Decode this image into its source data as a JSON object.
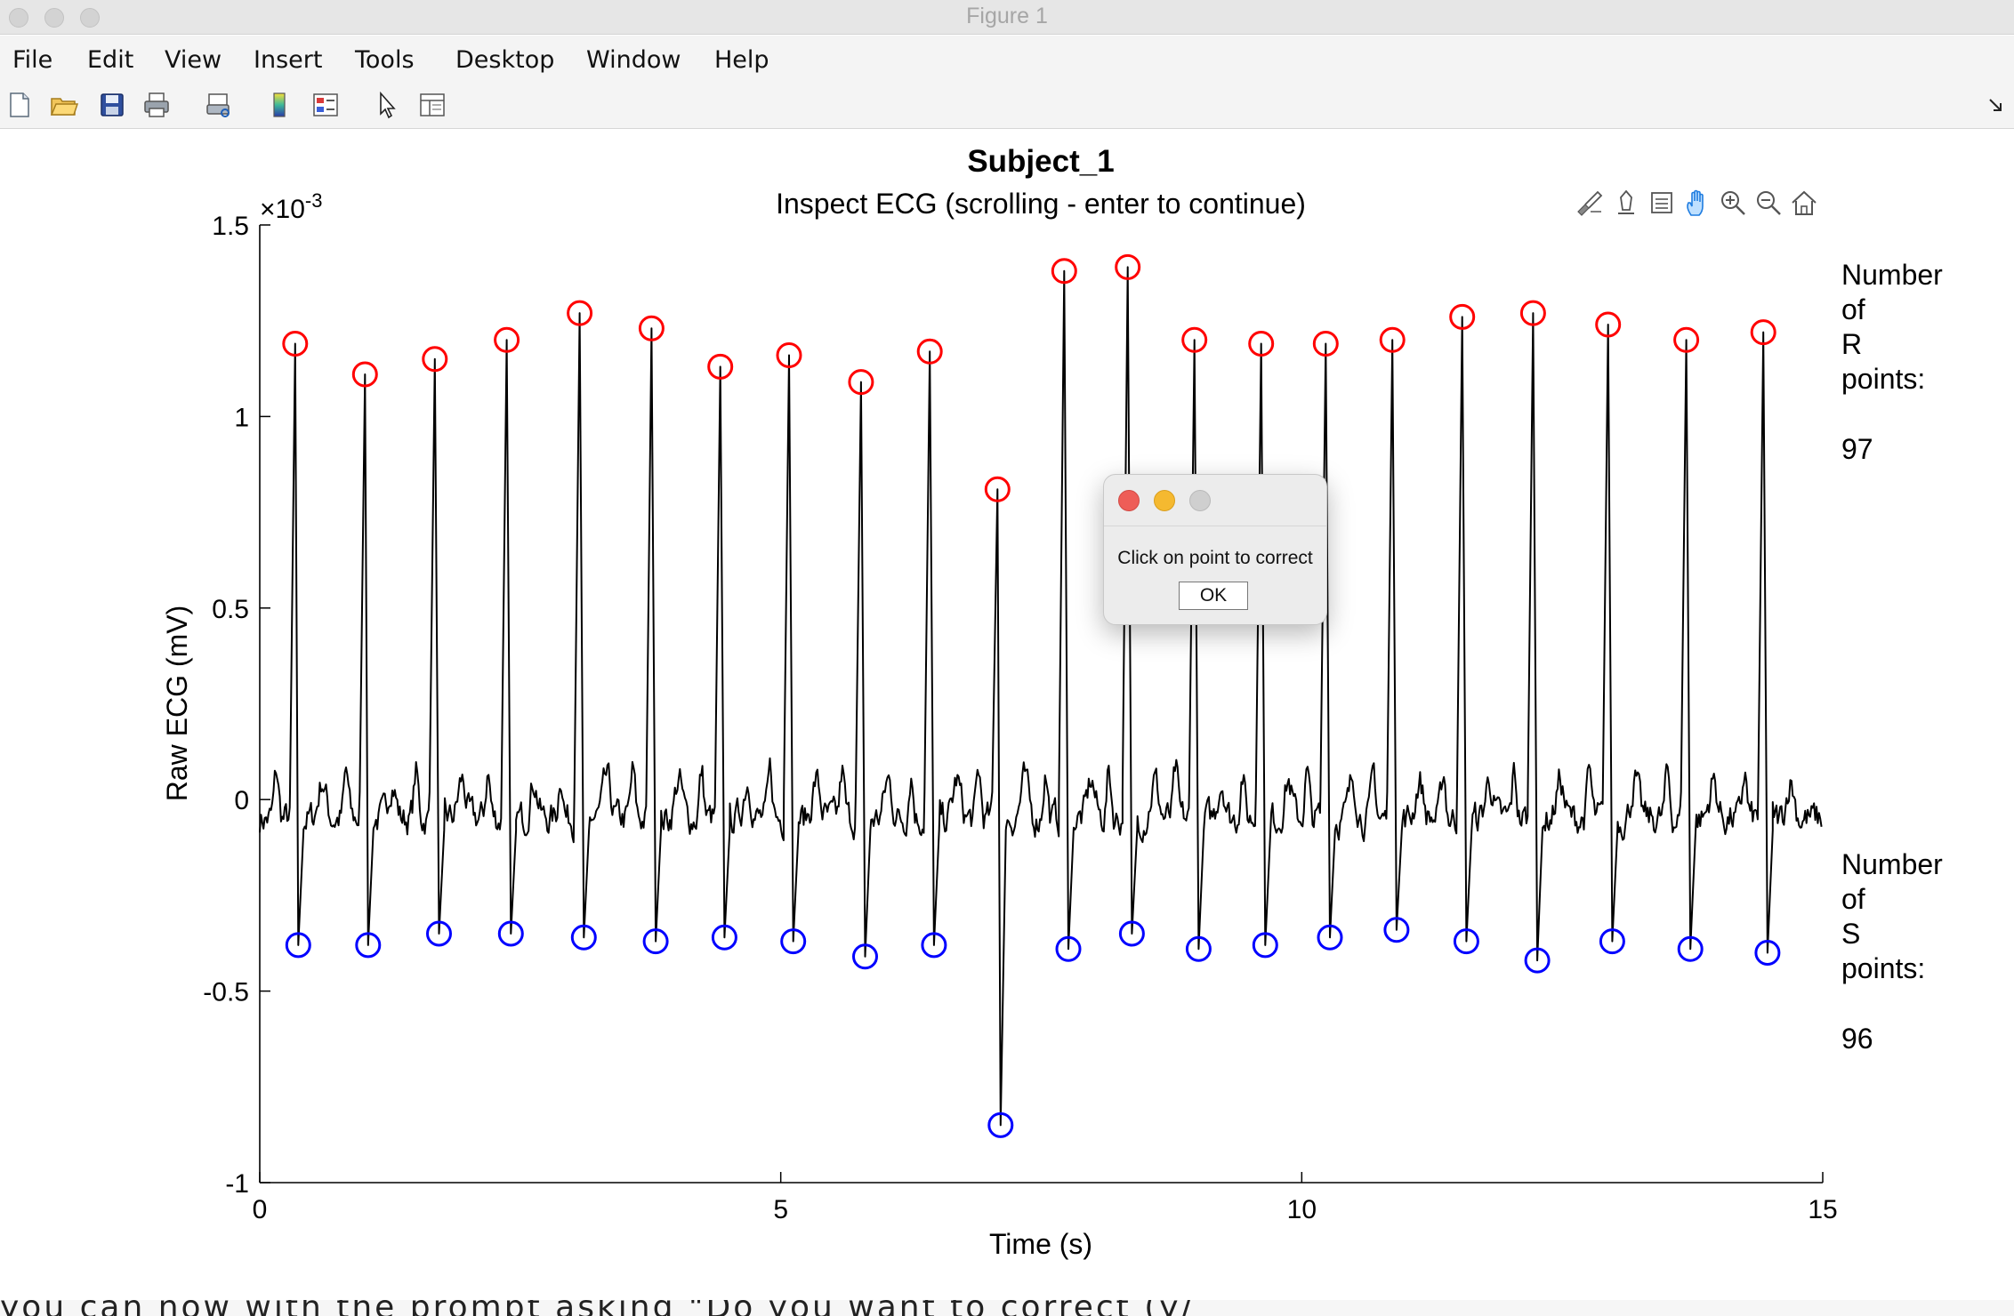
{
  "window": {
    "title": "Figure 1"
  },
  "menubar": {
    "items": [
      "File",
      "Edit",
      "View",
      "Insert",
      "Tools",
      "Desktop",
      "Window",
      "Help"
    ]
  },
  "toolbar": {
    "icons": [
      "new-figure-icon",
      "open-file-icon",
      "save-icon",
      "print-icon",
      "link-icon",
      "colorbar-icon",
      "legend-icon",
      "pointer-icon",
      "property-inspector-icon"
    ]
  },
  "axes_toolbar": {
    "icons": [
      "brush-icon",
      "data-tip-icon",
      "restore-view-icon",
      "pan-icon",
      "zoom-in-icon",
      "zoom-out-icon",
      "home-icon"
    ]
  },
  "figure": {
    "super_title": "Subject_1",
    "r_label": "Number\nof\nR\npoints:",
    "r_count": "97",
    "s_label": "Number\nof\nS\npoints:",
    "s_count": "96"
  },
  "dialog": {
    "message": "Click on point to correct",
    "ok_label": "OK"
  },
  "background_text": "you can now with the prompt asking \"Do you want to correct (y/",
  "chart_data": {
    "type": "line",
    "title": "Inspect ECG (scrolling - enter to continue)",
    "xlabel": "Time (s)",
    "ylabel": "Raw ECG (mV)",
    "xlim": [
      0,
      15
    ],
    "ylim": [
      -1,
      1.5
    ],
    "y_exponent_label": "×10",
    "y_exponent_power": "-3",
    "xticks": [
      0,
      5,
      10,
      15
    ],
    "xtick_labels": [
      "0",
      "5",
      "10",
      "15"
    ],
    "yticks": [
      -1,
      -0.5,
      0,
      0.5,
      1,
      1.5
    ],
    "ytick_labels": [
      "-1",
      "-0.5",
      "0",
      "0.5",
      "1",
      "1.5"
    ],
    "grid": false,
    "colors": {
      "ecg": "#000000",
      "r_markers": "#ff0000",
      "s_markers": "#0000ff"
    },
    "series": [
      {
        "name": "R points",
        "marker": "circle",
        "color": "#ff0000",
        "x": [
          0.34,
          1.01,
          1.68,
          2.37,
          3.07,
          3.76,
          4.42,
          5.08,
          5.77,
          6.43,
          7.08,
          7.72,
          8.33,
          8.97,
          9.61,
          10.23,
          10.87,
          11.54,
          12.22,
          12.94,
          13.69,
          14.43
        ],
        "y": [
          1.19,
          1.11,
          1.15,
          1.2,
          1.27,
          1.23,
          1.13,
          1.16,
          1.09,
          1.17,
          0.81,
          1.38,
          1.39,
          1.2,
          1.19,
          1.19,
          1.2,
          1.26,
          1.27,
          1.24,
          1.2,
          1.22
        ]
      },
      {
        "name": "S points",
        "marker": "circle",
        "color": "#0000ff",
        "x": [
          0.37,
          1.04,
          1.72,
          2.41,
          3.11,
          3.8,
          4.46,
          5.12,
          5.81,
          6.47,
          7.11,
          7.76,
          8.37,
          9.01,
          9.65,
          10.27,
          10.91,
          11.58,
          12.26,
          12.98,
          13.73,
          14.47
        ],
        "y": [
          -0.38,
          -0.38,
          -0.35,
          -0.35,
          -0.36,
          -0.37,
          -0.36,
          -0.37,
          -0.41,
          -0.38,
          -0.85,
          -0.39,
          -0.35,
          -0.39,
          -0.38,
          -0.36,
          -0.34,
          -0.37,
          -0.42,
          -0.37,
          -0.39,
          -0.4
        ]
      }
    ]
  }
}
